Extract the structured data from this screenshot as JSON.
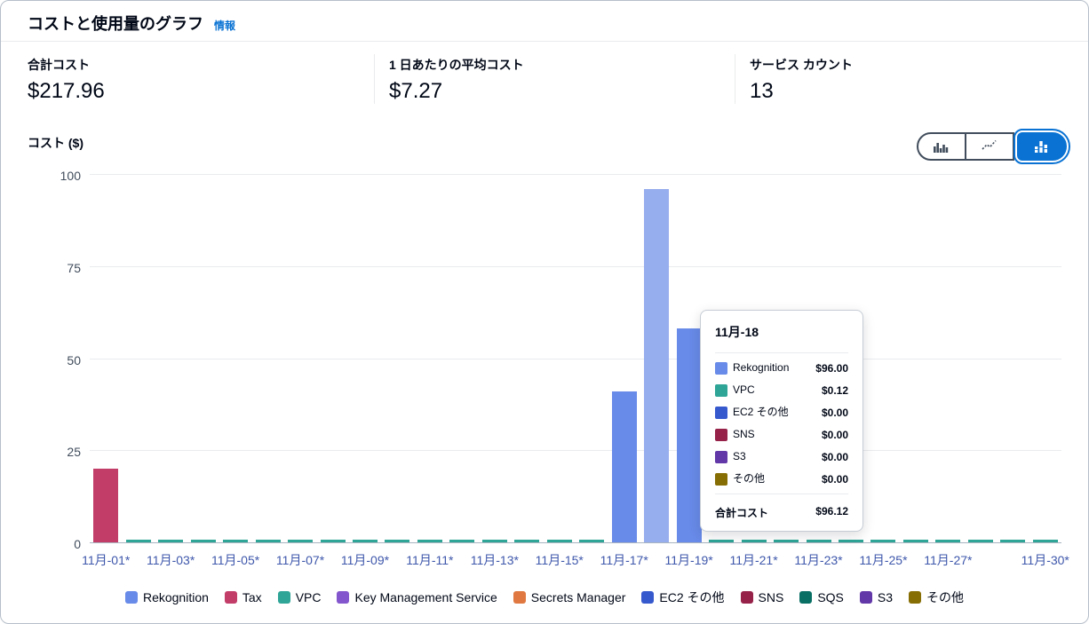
{
  "header": {
    "title": "コストと使用量のグラフ",
    "info_link": "情報"
  },
  "stats": [
    {
      "label": "合計コスト",
      "value": "$217.96"
    },
    {
      "label": "1 日あたりの平均コスト",
      "value": "$7.27"
    },
    {
      "label": "サービス カウント",
      "value": "13"
    }
  ],
  "chart": {
    "y_axis_title": "コスト ($)",
    "toggle": [
      {
        "icon": "grouped-bar-chart-icon",
        "selected": false
      },
      {
        "icon": "line-chart-icon",
        "selected": false
      },
      {
        "icon": "stacked-bar-chart-icon",
        "selected": true
      }
    ],
    "accent_color": "#0972d3"
  },
  "chart_data": {
    "type": "bar",
    "stacked": true,
    "title": "コストと使用量のグラフ",
    "ylabel": "コスト ($)",
    "ylim": [
      0,
      100
    ],
    "yticks": [
      0,
      25,
      50,
      75,
      100
    ],
    "x_days": 30,
    "x_tick_labels": [
      {
        "day": 1,
        "label": "11月-01*"
      },
      {
        "day": 3,
        "label": "11月-03*"
      },
      {
        "day": 5,
        "label": "11月-05*"
      },
      {
        "day": 7,
        "label": "11月-07*"
      },
      {
        "day": 9,
        "label": "11月-09*"
      },
      {
        "day": 11,
        "label": "11月-11*"
      },
      {
        "day": 13,
        "label": "11月-13*"
      },
      {
        "day": 15,
        "label": "11月-15*"
      },
      {
        "day": 17,
        "label": "11月-17*"
      },
      {
        "day": 19,
        "label": "11月-19*"
      },
      {
        "day": 21,
        "label": "11月-21*"
      },
      {
        "day": 23,
        "label": "11月-23*"
      },
      {
        "day": 25,
        "label": "11月-25*"
      },
      {
        "day": 27,
        "label": "11月-27*"
      },
      {
        "day": 30,
        "label": "11月-30*"
      }
    ],
    "bars": [
      {
        "day": 1,
        "series": "Tax",
        "value": 20,
        "color": "#C33D69",
        "highlighted": false
      },
      {
        "day": 17,
        "series": "Rekognition",
        "value": 41,
        "color": "#688AE8",
        "highlighted": false
      },
      {
        "day": 18,
        "series": "Rekognition",
        "value": 96,
        "color": "#96ADEE",
        "highlighted": true
      },
      {
        "day": 19,
        "series": "Rekognition",
        "value": 58,
        "color": "#688AE8",
        "highlighted": false
      }
    ],
    "baseline_series": {
      "name": "VPC",
      "color": "#2EA597",
      "daily_value": 0.12
    }
  },
  "tooltip": {
    "title": "11月-18",
    "rows": [
      {
        "label": "Rekognition",
        "value": "$96.00",
        "color": "#688AE8"
      },
      {
        "label": "VPC",
        "value": "$0.12",
        "color": "#2EA597"
      },
      {
        "label": "EC2 その他",
        "value": "$0.00",
        "color": "#3759CE"
      },
      {
        "label": "SNS",
        "value": "$0.00",
        "color": "#962249"
      },
      {
        "label": "S3",
        "value": "$0.00",
        "color": "#6237A7"
      },
      {
        "label": "その他",
        "value": "$0.00",
        "color": "#876E04"
      }
    ],
    "total_label": "合計コスト",
    "total_value": "$96.12"
  },
  "legend": [
    {
      "label": "Rekognition",
      "color": "#688AE8"
    },
    {
      "label": "Tax",
      "color": "#C33D69"
    },
    {
      "label": "VPC",
      "color": "#2EA597"
    },
    {
      "label": "Key Management Service",
      "color": "#8456CE"
    },
    {
      "label": "Secrets Manager",
      "color": "#E07941"
    },
    {
      "label": "EC2 その他",
      "color": "#3759CE"
    },
    {
      "label": "SNS",
      "color": "#962249"
    },
    {
      "label": "SQS",
      "color": "#096F64"
    },
    {
      "label": "S3",
      "color": "#6237A7"
    },
    {
      "label": "その他",
      "color": "#876E04"
    }
  ]
}
